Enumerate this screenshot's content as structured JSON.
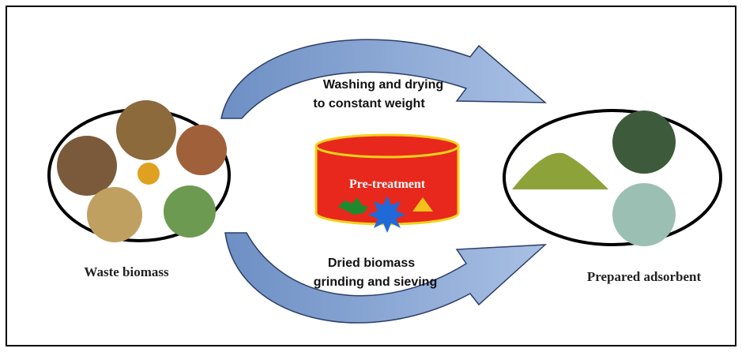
{
  "top_step": {
    "lines": [
      "Washing and drying",
      "to constant weight"
    ]
  },
  "center": {
    "label": "Pre-treatment"
  },
  "bottom_step": {
    "lines": [
      "Dried biomass",
      "grinding and sieving"
    ]
  },
  "source": {
    "label": "Waste biomass"
  },
  "product": {
    "label": "Prepared adsorbent"
  }
}
